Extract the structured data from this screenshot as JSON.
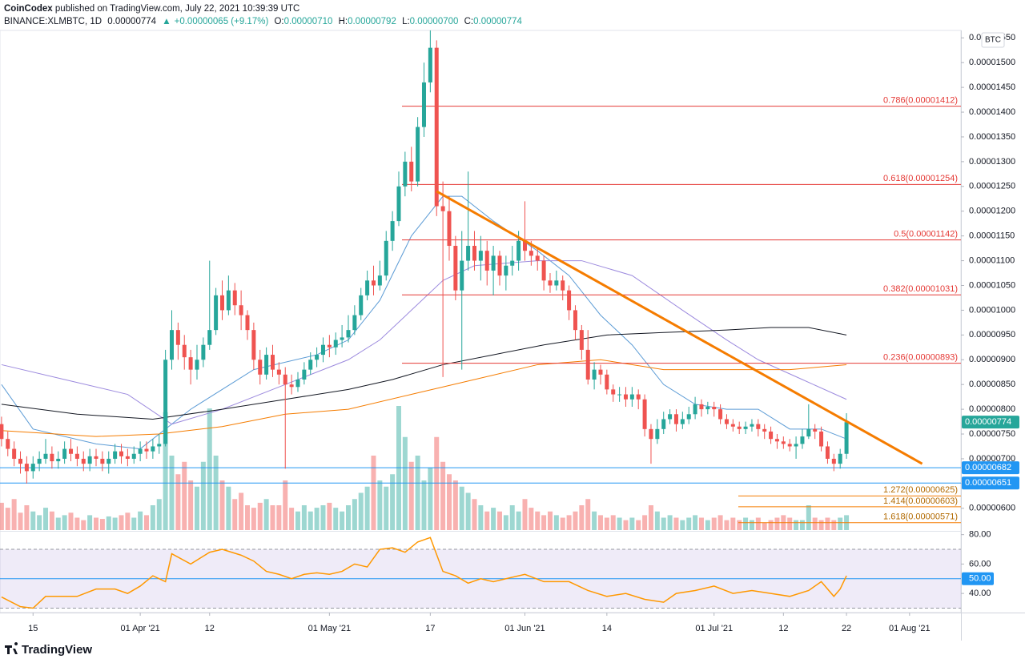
{
  "header": {
    "publisher": "CoinCodex",
    "published_text": "published on TradingView.com, July 22, 2021 10:39:39 UTC",
    "symbol": "BINANCE:XLMBTC, 1D",
    "last": "0.00000774",
    "change_arrow": "▲",
    "change": "+0.00000065 (+9.17%)",
    "ohlc": [
      {
        "label": "O:",
        "value": "0.00000710"
      },
      {
        "label": "H:",
        "value": "0.00000792"
      },
      {
        "label": "L:",
        "value": "0.00000700"
      },
      {
        "label": "C:",
        "value": "0.00000774"
      }
    ]
  },
  "footer": {
    "brand": "TradingView"
  },
  "chart_data": {
    "type": "candlestick",
    "unit": "BTC",
    "up_color": "#26a69a",
    "down_color": "#ef5350",
    "xlim": [
      -0.24,
      152.15
    ],
    "ylim": [
      5.56e-06,
      1.565e-05
    ],
    "xticks": [
      {
        "value": 5,
        "label": "15"
      },
      {
        "value": 22,
        "label": "01 Apr '21"
      },
      {
        "value": 33,
        "label": "12"
      },
      {
        "value": 52,
        "label": "01 May '21"
      },
      {
        "value": 68,
        "label": "17"
      },
      {
        "value": 83,
        "label": "01 Jun '21"
      },
      {
        "value": 96,
        "label": "14"
      },
      {
        "value": 113,
        "label": "01 Jul '21"
      },
      {
        "value": 124,
        "label": "12"
      },
      {
        "value": 134,
        "label": "22"
      },
      {
        "value": 144,
        "label": "01 Aug '21"
      }
    ],
    "yticks": [
      {
        "value": 6e-06,
        "label": "0.00000600"
      },
      {
        "value": 6.5e-06,
        "label": "0.00000650"
      },
      {
        "value": 7e-06,
        "label": "0.00000700"
      },
      {
        "value": 7.5e-06,
        "label": "0.00000750"
      },
      {
        "value": 8e-06,
        "label": "0.00000800"
      },
      {
        "value": 8.5e-06,
        "label": "0.00000850"
      },
      {
        "value": 9e-06,
        "label": "0.00000900"
      },
      {
        "value": 9.5e-06,
        "label": "0.00000950"
      },
      {
        "value": 1e-05,
        "label": "0.00001000"
      },
      {
        "value": 1.05e-05,
        "label": "0.00001050"
      },
      {
        "value": 1.1e-05,
        "label": "0.00001100"
      },
      {
        "value": 1.15e-05,
        "label": "0.00001150"
      },
      {
        "value": 1.2e-05,
        "label": "0.00001200"
      },
      {
        "value": 1.25e-05,
        "label": "0.00001250"
      },
      {
        "value": 1.3e-05,
        "label": "0.00001300"
      },
      {
        "value": 1.35e-05,
        "label": "0.00001350"
      },
      {
        "value": 1.4e-05,
        "label": "0.00001400"
      },
      {
        "value": 1.45e-05,
        "label": "0.00001450"
      },
      {
        "value": 1.5e-05,
        "label": "0.00001500"
      },
      {
        "value": 1.55e-05,
        "label": "0.00001550"
      }
    ],
    "open": [
      7.7e-06,
      7.4e-06,
      7.2e-06,
      7e-06,
      6.9e-06,
      6.75e-06,
      6.9e-06,
      7e-06,
      7.1e-06,
      6.95e-06,
      7e-06,
      7.2e-06,
      7.1e-06,
      7e-06,
      6.9e-06,
      7.05e-06,
      7e-06,
      6.9e-06,
      7e-06,
      7.15e-06,
      7.05e-06,
      7e-06,
      7.1e-06,
      7.2e-06,
      7.15e-06,
      7.25e-06,
      7.3e-06,
      9e-06,
      9.6e-06,
      9.3e-06,
      9.05e-06,
      8.8e-06,
      9e-06,
      9.3e-06,
      9.6e-06,
      1.03e-05,
      1e-05,
      1.04e-05,
      1.01e-05,
      9.9e-06,
      9.6e-06,
      9e-06,
      8.7e-06,
      9.1e-06,
      8.8e-06,
      8.7e-06,
      8.5e-06,
      8.45e-06,
      8.6e-06,
      8.8e-06,
      9e-06,
      9.1e-06,
      9.3e-06,
      9.25e-06,
      9.4e-06,
      9.45e-06,
      9.6e-06,
      9.9e-06,
      1.03e-05,
      1.06e-05,
      1.05e-05,
      1.07e-05,
      1.14e-05,
      1.18e-05,
      1.25e-05,
      1.3e-05,
      1.26e-05,
      1.37e-05,
      1.46e-05,
      1.53e-05,
      1.21e-05,
      1.2e-05,
      1.13e-05,
      1.04e-05,
      1.1e-05,
      1.13e-05,
      1.1e-05,
      1.12e-05,
      1.08e-05,
      1.11e-05,
      1.07e-05,
      1.09e-05,
      1.1e-05,
      1.14e-05,
      1.12e-05,
      1.11e-05,
      1.1e-05,
      1.06e-05,
      1.05e-05,
      1.06e-05,
      1.04e-05,
      1e-05,
      9.6e-06,
      9.2e-06,
      8.6e-06,
      8.8e-06,
      8.7e-06,
      8.4e-06,
      8.3e-06,
      8.3e-06,
      8.2e-06,
      8.3e-06,
      8.2e-06,
      7.6e-06,
      7.4e-06,
      7.6e-06,
      7.8e-06,
      7.9e-06,
      7.7e-06,
      7.8e-06,
      7.9e-06,
      8.1e-06,
      8e-06,
      8.05e-06,
      8e-06,
      7.8e-06,
      7.7e-06,
      7.65e-06,
      7.6e-06,
      7.65e-06,
      7.7e-06,
      7.6e-06,
      7.55e-06,
      7.4e-06,
      7.35e-06,
      7.3e-06,
      7.25e-06,
      7.3e-06,
      7.45e-06,
      7.6e-06,
      7.55e-06,
      7.25e-06,
      7e-06,
      6.9e-06,
      7.1e-06
    ],
    "high": [
      7.85e-06,
      7.55e-06,
      7.35e-06,
      7.15e-06,
      7.05e-06,
      7.05e-06,
      7.15e-06,
      7.4e-06,
      7.25e-06,
      7.15e-06,
      7.35e-06,
      7.4e-06,
      7.25e-06,
      7.15e-06,
      7.2e-06,
      7.2e-06,
      7.15e-06,
      7.15e-06,
      7.3e-06,
      7.3e-06,
      7.2e-06,
      7.25e-06,
      7.35e-06,
      7.35e-06,
      7.4e-06,
      7.5e-06,
      9.2e-06,
      1e-05,
      9.75e-06,
      9.5e-06,
      9.2e-06,
      9.3e-06,
      9.45e-06,
      1.1e-05,
      1.045e-05,
      1.06e-05,
      1.07e-05,
      1.055e-05,
      1.04e-05,
      1e-05,
      9.75e-06,
      9.2e-06,
      9.25e-06,
      9.3e-06,
      8.95e-06,
      8.85e-06,
      8.7e-06,
      8.75e-06,
      8.95e-06,
      9.15e-06,
      9.25e-06,
      9.45e-06,
      9.5e-06,
      9.55e-06,
      9.7e-06,
      9.9e-06,
      1.01e-05,
      1.045e-05,
      1.08e-05,
      1.09e-05,
      1.1e-05,
      1.16e-05,
      1.2e-05,
      1.28e-05,
      1.32e-05,
      1.33e-05,
      1.39e-05,
      1.5e-05,
      1.57e-05,
      1.545e-05,
      1.26e-05,
      1.23e-05,
      1.15e-05,
      1.16e-05,
      1.28e-05,
      1.16e-05,
      1.15e-05,
      1.14e-05,
      1.13e-05,
      1.12e-05,
      1.11e-05,
      1.13e-05,
      1.16e-05,
      1.22e-05,
      1.14e-05,
      1.125e-05,
      1.11e-05,
      1.075e-05,
      1.08e-05,
      1.07e-05,
      1.05e-05,
      1.01e-05,
      9.7e-06,
      9.6e-06,
      8.95e-06,
      8.9e-06,
      8.8e-06,
      8.5e-06,
      8.45e-06,
      8.45e-06,
      8.45e-06,
      8.4e-06,
      8.3e-06,
      7.7e-06,
      7.8e-06,
      7.95e-06,
      8e-06,
      8e-06,
      7.95e-06,
      8.05e-06,
      8.25e-06,
      8.2e-06,
      8.15e-06,
      8.15e-06,
      8.1e-06,
      7.9e-06,
      7.8e-06,
      7.75e-06,
      7.75e-06,
      7.8e-06,
      7.8e-06,
      7.7e-06,
      7.65e-06,
      7.5e-06,
      7.45e-06,
      7.4e-06,
      7.45e-06,
      7.6e-06,
      8.1e-06,
      7.7e-06,
      7.65e-06,
      7.35e-06,
      7.1e-06,
      7.2e-06,
      7.92e-06
    ],
    "low": [
      7.25e-06,
      7.05e-06,
      6.85e-06,
      6.7e-06,
      6.5e-06,
      6.6e-06,
      6.75e-06,
      6.9e-06,
      6.8e-06,
      6.8e-06,
      6.9e-06,
      6.95e-06,
      6.85e-06,
      6.75e-06,
      6.75e-06,
      6.85e-06,
      6.75e-06,
      6.7e-06,
      6.9e-06,
      6.9e-06,
      6.85e-06,
      6.9e-06,
      6.95e-06,
      7e-06,
      7e-06,
      7.1e-06,
      7.25e-06,
      8.8e-06,
      9e-06,
      8.8e-06,
      8.5e-06,
      8.6e-06,
      8.85e-06,
      9.2e-06,
      9.5e-06,
      9.8e-06,
      9.9e-06,
      9.9e-06,
      9.6e-06,
      9.4e-06,
      8.8e-06,
      8.5e-06,
      8.6e-06,
      8.65e-06,
      8.5e-06,
      6.8e-06,
      8.3e-06,
      8.35e-06,
      8.5e-06,
      8.7e-06,
      8.85e-06,
      8.95e-06,
      9.05e-06,
      9.1e-06,
      9.25e-06,
      9.35e-06,
      9.5e-06,
      9.8e-06,
      1.02e-05,
      1.03e-05,
      1.04e-05,
      1.06e-05,
      1.12e-05,
      1.17e-05,
      1.23e-05,
      1.24e-05,
      1.25e-05,
      1.35e-05,
      1.44e-05,
      1.19e-05,
      8.65e-06,
      1.1e-05,
      1.02e-05,
      8.8e-06,
      1.08e-05,
      1.08e-05,
      1.06e-05,
      1.05e-05,
      1.03e-05,
      1.05e-05,
      1.04e-05,
      1.07e-05,
      1.08e-05,
      1.1e-05,
      1.09e-05,
      1.08e-05,
      1.04e-05,
      1.035e-05,
      1.04e-05,
      1.02e-05,
      9.8e-06,
      9.4e-06,
      9e-06,
      8.5e-06,
      8.4e-06,
      8.5e-06,
      8.3e-06,
      8.15e-06,
      8.15e-06,
      8.05e-06,
      8.05e-06,
      8e-06,
      7.45e-06,
      6.9e-06,
      7.3e-06,
      7.5e-06,
      7.7e-06,
      7.55e-06,
      7.6e-06,
      7.7e-06,
      7.8e-06,
      7.85e-06,
      7.9e-06,
      7.85e-06,
      7.7e-06,
      7.6e-06,
      7.55e-06,
      7.5e-06,
      7.5e-06,
      7.55e-06,
      7.45e-06,
      7.4e-06,
      7.3e-06,
      7.2e-06,
      7.2e-06,
      7.15e-06,
      7e-06,
      7.2e-06,
      7.4e-06,
      7.4e-06,
      7.15e-06,
      6.9e-06,
      6.75e-06,
      6.8e-06,
      7e-06
    ],
    "close": [
      7.4e-06,
      7.2e-06,
      7e-06,
      6.9e-06,
      6.75e-06,
      6.9e-06,
      7e-06,
      7.1e-06,
      6.95e-06,
      7e-06,
      7.2e-06,
      7.1e-06,
      7e-06,
      6.9e-06,
      7.05e-06,
      7e-06,
      6.9e-06,
      7e-06,
      7.15e-06,
      7.05e-06,
      7e-06,
      7.1e-06,
      7.2e-06,
      7.15e-06,
      7.25e-06,
      7.3e-06,
      9e-06,
      9.6e-06,
      9.3e-06,
      9.05e-06,
      8.8e-06,
      9e-06,
      9.3e-06,
      9.6e-06,
      1.03e-05,
      1e-05,
      1.04e-05,
      1.01e-05,
      9.9e-06,
      9.6e-06,
      9e-06,
      8.7e-06,
      9.1e-06,
      8.8e-06,
      8.7e-06,
      8.5e-06,
      8.45e-06,
      8.6e-06,
      8.8e-06,
      9e-06,
      9.1e-06,
      9.3e-06,
      9.25e-06,
      9.4e-06,
      9.45e-06,
      9.6e-06,
      9.9e-06,
      1.03e-05,
      1.06e-05,
      1.05e-05,
      1.07e-05,
      1.14e-05,
      1.18e-05,
      1.25e-05,
      1.3e-05,
      1.26e-05,
      1.37e-05,
      1.46e-05,
      1.53e-05,
      1.21e-05,
      1.2e-05,
      1.13e-05,
      1.04e-05,
      1.1e-05,
      1.13e-05,
      1.1e-05,
      1.12e-05,
      1.08e-05,
      1.11e-05,
      1.07e-05,
      1.09e-05,
      1.1e-05,
      1.14e-05,
      1.12e-05,
      1.11e-05,
      1.1e-05,
      1.06e-05,
      1.05e-05,
      1.06e-05,
      1.04e-05,
      1e-05,
      9.6e-06,
      9.2e-06,
      8.6e-06,
      8.8e-06,
      8.7e-06,
      8.4e-06,
      8.3e-06,
      8.3e-06,
      8.2e-06,
      8.3e-06,
      8.2e-06,
      7.6e-06,
      7.4e-06,
      7.6e-06,
      7.8e-06,
      7.9e-06,
      7.7e-06,
      7.8e-06,
      7.9e-06,
      8.1e-06,
      8e-06,
      8.05e-06,
      8e-06,
      7.8e-06,
      7.7e-06,
      7.65e-06,
      7.6e-06,
      7.65e-06,
      7.7e-06,
      7.6e-06,
      7.55e-06,
      7.4e-06,
      7.35e-06,
      7.3e-06,
      7.25e-06,
      7.3e-06,
      7.45e-06,
      7.6e-06,
      7.55e-06,
      7.25e-06,
      7e-06,
      6.9e-06,
      7.1e-06,
      7.74e-06
    ],
    "volume": [
      22,
      18,
      25,
      14,
      20,
      15,
      12,
      18,
      15,
      10,
      12,
      14,
      10,
      8,
      12,
      10,
      9,
      11,
      10,
      12,
      14,
      10,
      15,
      12,
      20,
      25,
      95,
      60,
      45,
      55,
      40,
      35,
      55,
      98,
      60,
      40,
      35,
      25,
      30,
      20,
      18,
      22,
      25,
      20,
      20,
      40,
      18,
      15,
      20,
      15,
      18,
      20,
      22,
      18,
      15,
      20,
      25,
      30,
      35,
      60,
      40,
      35,
      45,
      100,
      75,
      55,
      60,
      40,
      50,
      75,
      55,
      45,
      40,
      35,
      30,
      25,
      20,
      15,
      18,
      15,
      12,
      20,
      15,
      25,
      18,
      15,
      12,
      15,
      12,
      10,
      12,
      15,
      20,
      25,
      15,
      12,
      10,
      12,
      10,
      8,
      10,
      8,
      12,
      20,
      15,
      10,
      12,
      10,
      8,
      10,
      12,
      10,
      8,
      10,
      12,
      8,
      10,
      8,
      10,
      8,
      10,
      6,
      8,
      10,
      12,
      10,
      8,
      8,
      20,
      10,
      8,
      10,
      8,
      10,
      12
    ],
    "moving_averages": [
      {
        "color": "#5b9bd5",
        "x": [
          0,
          5,
          15,
          22,
          30,
          40,
          50,
          55,
          60,
          65,
          70,
          73,
          78,
          85,
          90,
          95,
          100,
          105,
          110,
          115,
          120,
          125,
          130,
          134
        ],
        "values": [
          8.5e-06,
          7.6e-06,
          7.3e-06,
          7.2e-06,
          8e-06,
          8.8e-06,
          9.1e-06,
          9.4e-06,
          1.02e-05,
          1.15e-05,
          1.23e-05,
          1.23e-05,
          1.18e-05,
          1.12e-05,
          1.07e-05,
          9.9e-06,
          9.3e-06,
          8.5e-06,
          8.1e-06,
          8e-06,
          8e-06,
          7.6e-06,
          7.6e-06,
          7.4e-06
        ]
      },
      {
        "color": "#9c8ade",
        "x": [
          0,
          10,
          20,
          27,
          35,
          45,
          55,
          60,
          65,
          70,
          75,
          85,
          92,
          100,
          108,
          115,
          120,
          127,
          134
        ],
        "values": [
          8.9e-06,
          8.6e-06,
          8.3e-06,
          7.7e-06,
          8e-06,
          8.5e-06,
          9e-06,
          9.4e-06,
          1e-05,
          1.06e-05,
          1.09e-05,
          1.1e-05,
          1.1e-05,
          1.07e-05,
          1e-05,
          9.4e-06,
          9e-06,
          8.6e-06,
          8.2e-06
        ]
      },
      {
        "color": "#131722",
        "x": [
          0,
          12,
          24,
          35,
          45,
          55,
          62,
          70,
          78,
          86,
          96,
          105,
          115,
          122,
          128,
          134
        ],
        "values": [
          8.1e-06,
          7.9e-06,
          7.8e-06,
          8e-06,
          8.2e-06,
          8.4e-06,
          8.6e-06,
          8.9e-06,
          9.1e-06,
          9.3e-06,
          9.5e-06,
          9.55e-06,
          9.6e-06,
          9.65e-06,
          9.65e-06,
          9.5e-06
        ]
      },
      {
        "color": "#f57c00",
        "x": [
          0,
          15,
          25,
          35,
          45,
          55,
          65,
          75,
          85,
          95,
          105,
          115,
          125,
          134
        ],
        "values": [
          7.57e-06,
          7.45e-06,
          7.5e-06,
          7.65e-06,
          7.9e-06,
          8e-06,
          8.3e-06,
          8.6e-06,
          8.9e-06,
          9e-06,
          8.8e-06,
          8.8e-06,
          8.8e-06,
          8.9e-06
        ]
      }
    ],
    "trendline": {
      "color": "#f57c00",
      "x": [
        69,
        146
      ],
      "values": [
        1.24e-05,
        6.9e-06
      ]
    },
    "fib_color": "#e53935",
    "fib_levels": [
      {
        "value": 1.412e-05,
        "label": "0.786(0.00001412)"
      },
      {
        "value": 1.254e-05,
        "label": "0.618(0.00001254)"
      },
      {
        "value": 1.142e-05,
        "label": "0.5(0.00001142)"
      },
      {
        "value": 1.031e-05,
        "label": "0.382(0.00001031)"
      },
      {
        "value": 8.93e-06,
        "label": "0.236(0.00000893)"
      }
    ],
    "ext_color": "#f57c00",
    "ext_levels": [
      {
        "value": 6.25e-06,
        "label": "1.272(0.00000625)"
      },
      {
        "value": 6.03e-06,
        "label": "1.414(0.00000603)"
      },
      {
        "value": 5.71e-06,
        "label": "1.618(0.00000571)"
      }
    ],
    "hline_color": "#2196f3",
    "hlines": [
      {
        "value": 6.82e-06,
        "label": "0.00000682"
      },
      {
        "value": 6.51e-06,
        "label": "0.00000651"
      }
    ],
    "last_price": {
      "value": 7.74e-06,
      "label": "0.00000774"
    },
    "rsi": {
      "color": "#ff9800",
      "band_color": "#7e57c2",
      "mid_color": "#2196f3",
      "ylim": [
        27,
        82
      ],
      "band": [
        30,
        70
      ],
      "yticks": [
        {
          "value": 80,
          "label": "80.00"
        },
        {
          "value": 60,
          "label": "60.00"
        },
        {
          "value": 40,
          "label": "40.00"
        }
      ],
      "marker": {
        "value": 50,
        "label": "50.00"
      },
      "x": [
        0,
        3,
        5,
        7,
        10,
        12,
        15,
        18,
        20,
        22,
        24,
        26,
        27,
        30,
        33,
        35,
        38,
        40,
        42,
        44,
        46,
        48,
        50,
        52,
        54,
        56,
        58,
        60,
        62,
        64,
        66,
        68,
        70,
        72,
        74,
        76,
        78,
        80,
        83,
        86,
        90,
        93,
        96,
        99,
        102,
        105,
        107,
        110,
        113,
        116,
        119,
        122,
        125,
        128,
        130,
        132,
        133,
        134
      ],
      "values": [
        37.6,
        31,
        30,
        38,
        38,
        38,
        43,
        43,
        40,
        45,
        52,
        48,
        67,
        60,
        68,
        70,
        66,
        62,
        55,
        53,
        50,
        53,
        54,
        53,
        55,
        60,
        58,
        70,
        71,
        68,
        75,
        78,
        55,
        52,
        47,
        50,
        48,
        50,
        53,
        48,
        48,
        42,
        38,
        40,
        36,
        34,
        40,
        42,
        45,
        40,
        42,
        40,
        38,
        42,
        48,
        38,
        43,
        52
      ]
    }
  }
}
